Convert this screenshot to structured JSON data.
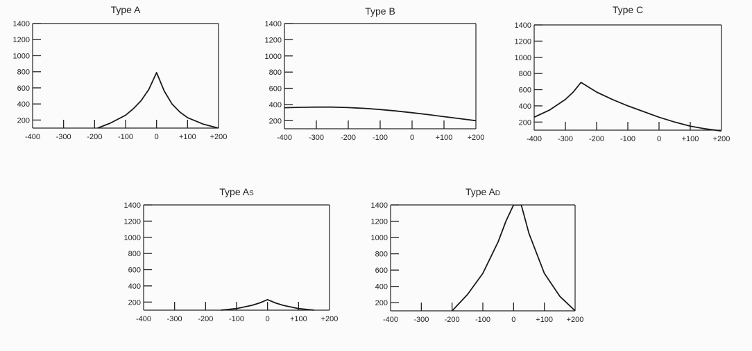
{
  "chart_data": [
    {
      "type": "line",
      "title": "Type A",
      "xlim": [
        -400,
        200
      ],
      "ylim": [
        100,
        1400
      ],
      "xticks": [
        -400,
        -300,
        -200,
        -100,
        0,
        100,
        200
      ],
      "xtick_labels": [
        "-400",
        "-300",
        "-200",
        "-100",
        "0",
        "+100",
        "+200"
      ],
      "yticks": [
        200,
        400,
        600,
        800,
        1000,
        1200,
        1400
      ],
      "ytick_labels": [
        "200",
        "400",
        "600",
        "800",
        "1000",
        "1200",
        "1400"
      ],
      "x": [
        -190,
        -150,
        -100,
        -75,
        -50,
        -25,
        0,
        25,
        50,
        75,
        100,
        150,
        200
      ],
      "y": [
        100,
        160,
        260,
        340,
        440,
        580,
        790,
        560,
        400,
        300,
        230,
        150,
        100
      ]
    },
    {
      "type": "line",
      "title": "Type B",
      "xlim": [
        -400,
        200
      ],
      "ylim": [
        100,
        1400
      ],
      "xticks": [
        -400,
        -300,
        -200,
        -100,
        0,
        100,
        200
      ],
      "xtick_labels": [
        "-400",
        "-300",
        "-200",
        "-100",
        "0",
        "+100",
        "+200"
      ],
      "yticks": [
        200,
        400,
        600,
        800,
        1000,
        1200,
        1400
      ],
      "ytick_labels": [
        "200",
        "400",
        "600",
        "800",
        "1000",
        "1200",
        "1400"
      ],
      "x": [
        -400,
        -350,
        -300,
        -250,
        -200,
        -150,
        -100,
        -50,
        0,
        50,
        100,
        150,
        200
      ],
      "y": [
        360,
        365,
        368,
        368,
        362,
        352,
        338,
        320,
        298,
        275,
        250,
        225,
        200
      ]
    },
    {
      "type": "line",
      "title": "Type C",
      "xlim": [
        -400,
        200
      ],
      "ylim": [
        100,
        1400
      ],
      "xticks": [
        -400,
        -300,
        -200,
        -100,
        0,
        100,
        200
      ],
      "xtick_labels": [
        "-400",
        "-300",
        "-200",
        "-100",
        "0",
        "+100",
        "+200"
      ],
      "yticks": [
        200,
        400,
        600,
        800,
        1000,
        1200,
        1400
      ],
      "ytick_labels": [
        "200",
        "400",
        "600",
        "800",
        "1000",
        "1200",
        "1400"
      ],
      "x": [
        -400,
        -350,
        -300,
        -275,
        -250,
        -200,
        -150,
        -100,
        -50,
        0,
        50,
        100,
        150,
        200
      ],
      "y": [
        260,
        350,
        480,
        570,
        690,
        570,
        480,
        400,
        330,
        260,
        200,
        150,
        115,
        90
      ]
    },
    {
      "type": "line",
      "title": "Type As",
      "xlim": [
        -400,
        200
      ],
      "ylim": [
        100,
        1400
      ],
      "xticks": [
        -400,
        -300,
        -200,
        -100,
        0,
        100,
        200
      ],
      "xtick_labels": [
        "-400",
        "-300",
        "-200",
        "-100",
        "0",
        "+100",
        "+200"
      ],
      "yticks": [
        200,
        400,
        600,
        800,
        1000,
        1200,
        1400
      ],
      "ytick_labels": [
        "200",
        "400",
        "600",
        "800",
        "1000",
        "1200",
        "1400"
      ],
      "x": [
        -150,
        -100,
        -50,
        -25,
        0,
        25,
        50,
        100,
        150
      ],
      "y": [
        100,
        120,
        160,
        190,
        230,
        190,
        160,
        120,
        100
      ]
    },
    {
      "type": "line",
      "title": "Type Ad",
      "xlim": [
        -400,
        200
      ],
      "ylim": [
        100,
        1400
      ],
      "xticks": [
        -400,
        -300,
        -200,
        -100,
        0,
        100,
        200
      ],
      "xtick_labels": [
        "-400",
        "-300",
        "-200",
        "-100",
        "0",
        "+100",
        "+200"
      ],
      "yticks": [
        200,
        400,
        600,
        800,
        1000,
        1200,
        1400
      ],
      "ytick_labels": [
        "200",
        "400",
        "600",
        "800",
        "1000",
        "1200",
        "1400"
      ],
      "x": [
        -200,
        -150,
        -100,
        -50,
        -25,
        0,
        25,
        50,
        100,
        150,
        200
      ],
      "y": [
        100,
        300,
        560,
        950,
        1200,
        1400,
        1400,
        1050,
        560,
        280,
        100
      ]
    }
  ]
}
